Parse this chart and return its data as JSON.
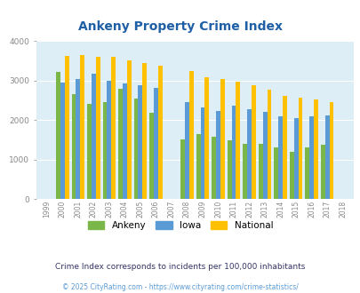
{
  "title": "Ankeny Property Crime Index",
  "years": [
    1999,
    2000,
    2001,
    2002,
    2003,
    2004,
    2005,
    2006,
    2007,
    2008,
    2009,
    2010,
    2011,
    2012,
    2013,
    2014,
    2015,
    2016,
    2017,
    2018
  ],
  "ankeny": [
    null,
    3220,
    2650,
    2420,
    2450,
    2790,
    2540,
    2180,
    null,
    1510,
    1650,
    1580,
    1490,
    1410,
    1400,
    1300,
    1200,
    1300,
    1380,
    null
  ],
  "iowa": [
    null,
    2960,
    3050,
    3170,
    3000,
    2920,
    2890,
    2820,
    null,
    2450,
    2320,
    2240,
    2360,
    2280,
    2200,
    2090,
    2060,
    2100,
    2130,
    null
  ],
  "national": [
    null,
    3620,
    3650,
    3600,
    3590,
    3510,
    3440,
    3380,
    null,
    3240,
    3080,
    3050,
    2980,
    2890,
    2780,
    2620,
    2570,
    2520,
    2460,
    null
  ],
  "color_ankeny": "#7ab648",
  "color_iowa": "#5b9bd5",
  "color_national": "#ffc000",
  "bg_color": "#ddeef6",
  "ylim": [
    0,
    4000
  ],
  "yticks": [
    0,
    1000,
    2000,
    3000,
    4000
  ],
  "subtitle": "Crime Index corresponds to incidents per 100,000 inhabitants",
  "footer": "© 2025 CityRating.com - https://www.cityrating.com/crime-statistics/",
  "title_color": "#1f5fa6",
  "subtitle_color": "#333366",
  "footer_color": "#5b9bd5"
}
